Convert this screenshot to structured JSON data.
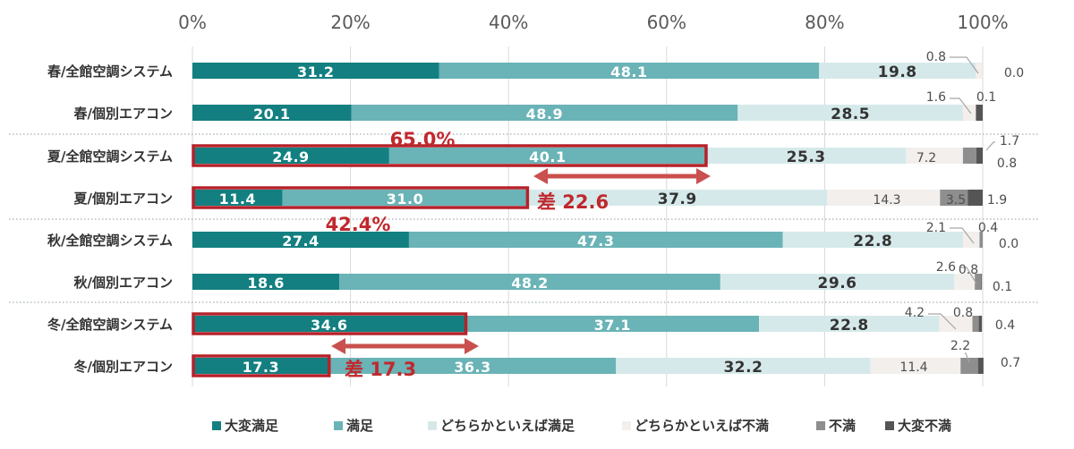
{
  "chart_data": {
    "type": "bar",
    "orientation": "horizontal",
    "stacked": true,
    "percent_stacked": true,
    "title": "",
    "xlabel": "",
    "ylabel": "",
    "xlim": [
      0,
      100
    ],
    "x_ticks": [
      "0%",
      "20%",
      "40%",
      "60%",
      "80%",
      "100%"
    ],
    "x_tick_values": [
      0,
      20,
      40,
      60,
      80,
      100
    ],
    "grid": true,
    "legend_position": "bottom",
    "categories": [
      "春/全館空調システム",
      "春/個別エアコン",
      "夏/全館空調システム",
      "夏/個別エアコン",
      "秋/全館空調システム",
      "秋/個別エアコン",
      "冬/全館空調システム",
      "冬/個別エアコン"
    ],
    "series": [
      {
        "name": "大変満足",
        "color": "#137f80",
        "label_color": "#ffffff",
        "values": [
          31.2,
          20.1,
          24.9,
          11.4,
          27.4,
          18.6,
          34.6,
          17.3
        ]
      },
      {
        "name": "満足",
        "color": "#6ab3b6",
        "label_color": "#ffffff",
        "values": [
          48.1,
          48.9,
          40.1,
          31.0,
          47.3,
          48.2,
          37.1,
          36.3
        ]
      },
      {
        "name": "どちらかといえば満足",
        "color": "#d6e9ea",
        "label_color": "#333333",
        "values": [
          19.8,
          28.5,
          25.3,
          37.9,
          22.8,
          29.6,
          22.8,
          32.2
        ]
      },
      {
        "name": "どちらかといえば不満",
        "color": "#f2efec",
        "label_color": "#555555",
        "values": [
          0.8,
          1.6,
          7.2,
          14.3,
          2.1,
          2.6,
          4.2,
          11.4
        ]
      },
      {
        "name": "不満",
        "color": "#8e8e8e",
        "label_color": "#333333",
        "values": [
          0.0,
          0.1,
          1.7,
          3.5,
          0.4,
          0.8,
          0.8,
          2.2
        ]
      },
      {
        "name": "大変不満",
        "color": "#555555",
        "label_color": "#333333",
        "values": [
          0.0,
          0.8,
          0.8,
          1.9,
          0.0,
          0.1,
          0.4,
          0.7
        ]
      }
    ],
    "annotations": [
      {
        "id": "pct-summer-central",
        "text": "65.0%",
        "color": "#c0282d"
      },
      {
        "id": "diff-summer",
        "text": "差 22.6",
        "color": "#c0282d"
      },
      {
        "id": "pct-summer-individual",
        "text": "42.4%",
        "color": "#c0282d"
      },
      {
        "id": "diff-winter",
        "text": "差 17.3",
        "color": "#c0282d"
      }
    ],
    "highlight_color": "#b5222a"
  }
}
